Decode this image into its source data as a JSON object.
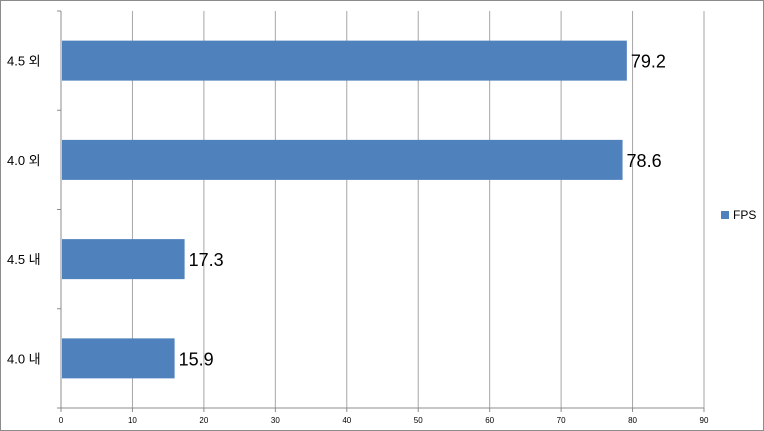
{
  "chart_data": {
    "type": "bar",
    "orientation": "horizontal",
    "categories": [
      "4.5 외",
      "4.0 외",
      "4.5 내",
      "4.0 내"
    ],
    "series": [
      {
        "name": "FPS",
        "values": [
          79.2,
          78.6,
          17.3,
          15.9
        ],
        "color": "#4f81bd"
      }
    ],
    "data_labels": [
      "79.2",
      "78.6",
      "17.3",
      "15.9"
    ],
    "xlim": [
      0,
      90
    ],
    "xticks": [
      0,
      10,
      20,
      30,
      40,
      50,
      60,
      70,
      80,
      90
    ],
    "xtick_labels": [
      "0",
      "10",
      "20",
      "30",
      "40",
      "50",
      "60",
      "70",
      "80",
      "90"
    ],
    "grid": "vertical",
    "legend": {
      "placement": "right",
      "entries": [
        "FPS"
      ]
    },
    "title": "",
    "xlabel": "",
    "ylabel": ""
  }
}
